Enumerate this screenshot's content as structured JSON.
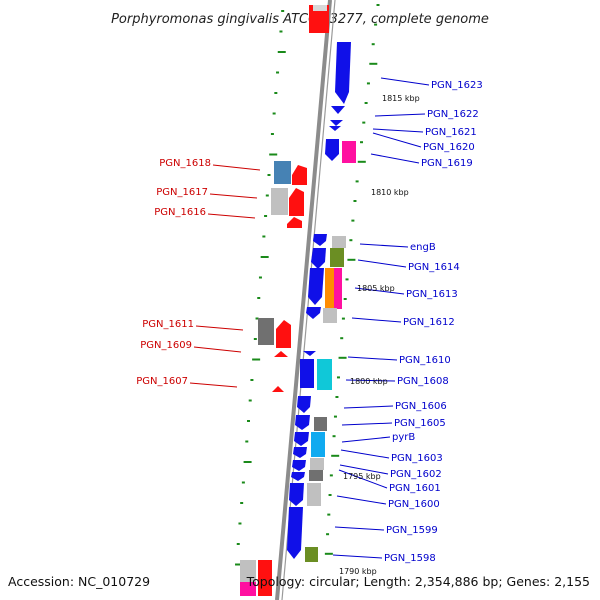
{
  "title": "Porphyromonas gingivalis ATCC 33277, complete genome",
  "footer": {
    "accession": "Accession: NC_010729",
    "summary": "Topology: circular; Length: 2,354,886 bp; Genes: 2,155"
  },
  "colors": {
    "forward_strand": "#1010e8",
    "reverse_strand": "#ff1010",
    "right_label": "#0000cc",
    "left_label": "#cc0000",
    "backbone": "#8c8c8c",
    "tick": "#1a8a1a"
  },
  "scale_labels": [
    "1815 kbp",
    "1810 kbp",
    "1805 kbp",
    "1800 kbp",
    "1795 kbp",
    "1790 kbp"
  ],
  "right_genes": [
    "PGN_1623",
    "PGN_1622",
    "PGN_1621",
    "PGN_1620",
    "PGN_1619",
    "engB",
    "PGN_1614",
    "PGN_1613",
    "PGN_1612",
    "PGN_1610",
    "PGN_1608",
    "PGN_1606",
    "PGN_1605",
    "pyrB",
    "PGN_1603",
    "PGN_1602",
    "PGN_1601",
    "PGN_1600",
    "PGN_1599",
    "PGN_1598"
  ],
  "left_genes": [
    "PGN_1618",
    "PGN_1617",
    "PGN_1616",
    "PGN_1611",
    "PGN_1609",
    "PGN_1607"
  ]
}
